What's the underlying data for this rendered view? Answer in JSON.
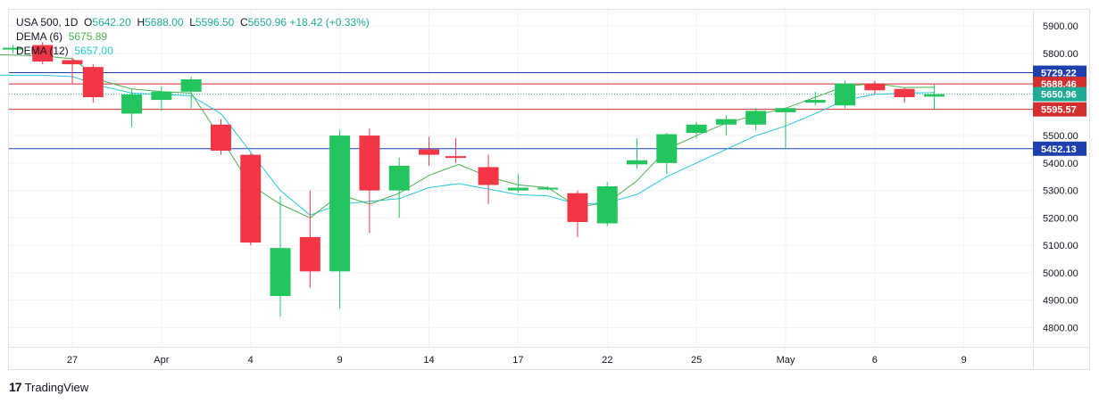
{
  "legend": {
    "symbol": "USA 500, 1D",
    "open_label": "O",
    "open": "5642.20",
    "high_label": "H",
    "high": "5688.00",
    "low_label": "L",
    "low": "5596.50",
    "close_label": "C",
    "close": "5650.96",
    "change": "+18.42 (+0.33%)",
    "dema6_label": "DEMA (6)",
    "dema6_value": "5675.89",
    "dema12_label": "DEMA (12)",
    "dema12_value": "5657.00"
  },
  "brand": {
    "logo": "17",
    "name": "TradingView"
  },
  "colors": {
    "up": "#22c55e",
    "down": "#f23645",
    "dema6": "#4caf50",
    "dema12": "#26c6da",
    "blue_line": "#1e40af",
    "red_line": "#d32f2f",
    "grid": "#f0f3fa"
  },
  "chart_data": {
    "type": "candlestick",
    "ylim": [
      4760,
      5950
    ],
    "y_ticks": [
      4800,
      4900,
      5000,
      5100,
      5200,
      5300,
      5400,
      5500,
      5600,
      5700,
      5800,
      5900
    ],
    "y_tick_labels": [
      "4800.00",
      "4900.00",
      "5000.00",
      "5100.00",
      "5200.00",
      "5300.00",
      "5400.00",
      "5500.00",
      "5600.00",
      "5700.00",
      "5800.00",
      "5900.00"
    ],
    "x_tick_labels": [
      {
        "label": "27",
        "day": 0
      },
      {
        "label": "Apr",
        "day": 3
      },
      {
        "label": "4",
        "day": 6
      },
      {
        "label": "9",
        "day": 9
      },
      {
        "label": "14",
        "day": 12
      },
      {
        "label": "17",
        "day": 15
      },
      {
        "label": "22",
        "day": 18
      },
      {
        "label": "25",
        "day": 21
      },
      {
        "label": "May",
        "day": 24
      },
      {
        "label": "6",
        "day": 27
      },
      {
        "label": "9",
        "day": 30
      }
    ],
    "candles": [
      {
        "day": -2,
        "open": 5820,
        "high": 5830,
        "low": 5800,
        "close": 5820
      },
      {
        "day": -1,
        "open": 5830,
        "high": 5840,
        "low": 5760,
        "close": 5770
      },
      {
        "day": 0,
        "open": 5775,
        "high": 5785,
        "low": 5690,
        "close": 5760
      },
      {
        "day": 0.7,
        "open": 5750,
        "high": 5760,
        "low": 5620,
        "close": 5640
      },
      {
        "day": 2,
        "open": 5580,
        "high": 5670,
        "low": 5530,
        "close": 5650
      },
      {
        "day": 3,
        "open": 5630,
        "high": 5680,
        "low": 5590,
        "close": 5660
      },
      {
        "day": 4,
        "open": 5660,
        "high": 5715,
        "low": 5600,
        "close": 5705
      },
      {
        "day": 5,
        "open": 5540,
        "high": 5560,
        "low": 5430,
        "close": 5445
      },
      {
        "day": 6,
        "open": 5430,
        "high": 5435,
        "low": 5100,
        "close": 5110
      },
      {
        "day": 7,
        "open": 4915,
        "high": 5280,
        "low": 4840,
        "close": 5090
      },
      {
        "day": 8,
        "open": 5130,
        "high": 5300,
        "low": 4945,
        "close": 5005
      },
      {
        "day": 9,
        "open": 5005,
        "high": 5520,
        "low": 4870,
        "close": 5500
      },
      {
        "day": 10,
        "open": 5500,
        "high": 5525,
        "low": 5145,
        "close": 5300
      },
      {
        "day": 11,
        "open": 5300,
        "high": 5420,
        "low": 5200,
        "close": 5390
      },
      {
        "day": 12,
        "open": 5450,
        "high": 5495,
        "low": 5390,
        "close": 5430
      },
      {
        "day": 12.9,
        "open": 5425,
        "high": 5490,
        "low": 5400,
        "close": 5420
      },
      {
        "day": 14,
        "open": 5385,
        "high": 5430,
        "low": 5250,
        "close": 5320
      },
      {
        "day": 15,
        "open": 5300,
        "high": 5360,
        "low": 5290,
        "close": 5310
      },
      {
        "day": 16,
        "open": 5310,
        "high": 5315,
        "low": 5300,
        "close": 5310
      },
      {
        "day": 17,
        "open": 5290,
        "high": 5300,
        "low": 5130,
        "close": 5185
      },
      {
        "day": 18,
        "open": 5180,
        "high": 5330,
        "low": 5170,
        "close": 5315
      },
      {
        "day": 19,
        "open": 5395,
        "high": 5490,
        "low": 5380,
        "close": 5410
      },
      {
        "day": 20,
        "open": 5400,
        "high": 5510,
        "low": 5360,
        "close": 5505
      },
      {
        "day": 21,
        "open": 5510,
        "high": 5550,
        "low": 5490,
        "close": 5540
      },
      {
        "day": 22,
        "open": 5540,
        "high": 5575,
        "low": 5500,
        "close": 5560
      },
      {
        "day": 23,
        "open": 5540,
        "high": 5600,
        "low": 5520,
        "close": 5590
      },
      {
        "day": 24,
        "open": 5585,
        "high": 5600,
        "low": 5450,
        "close": 5600
      },
      {
        "day": 25,
        "open": 5620,
        "high": 5660,
        "low": 5610,
        "close": 5630
      },
      {
        "day": 26,
        "open": 5610,
        "high": 5700,
        "low": 5600,
        "close": 5690
      },
      {
        "day": 27,
        "open": 5690,
        "high": 5700,
        "low": 5650,
        "close": 5665
      },
      {
        "day": 28,
        "open": 5670,
        "high": 5675,
        "low": 5620,
        "close": 5640
      },
      {
        "day": 29,
        "open": 5642,
        "high": 5688,
        "low": 5596,
        "close": 5651
      }
    ],
    "dema6": [
      [
        -2.5,
        5795
      ],
      [
        -1,
        5790
      ],
      [
        0,
        5780
      ],
      [
        1,
        5700
      ],
      [
        2,
        5670
      ],
      [
        3,
        5660
      ],
      [
        4,
        5655
      ],
      [
        5,
        5490
      ],
      [
        6,
        5320
      ],
      [
        7,
        5250
      ],
      [
        8,
        5200
      ],
      [
        9,
        5285
      ],
      [
        10,
        5250
      ],
      [
        11,
        5290
      ],
      [
        12,
        5355
      ],
      [
        13,
        5395
      ],
      [
        14,
        5350
      ],
      [
        15,
        5320
      ],
      [
        16,
        5310
      ],
      [
        17,
        5240
      ],
      [
        18,
        5255
      ],
      [
        19,
        5335
      ],
      [
        20,
        5450
      ],
      [
        21,
        5500
      ],
      [
        22,
        5545
      ],
      [
        23,
        5575
      ],
      [
        24,
        5600
      ],
      [
        25,
        5640
      ],
      [
        26,
        5680
      ],
      [
        27,
        5690
      ],
      [
        28,
        5675
      ],
      [
        29,
        5676
      ]
    ],
    "dema12": [
      [
        -2.5,
        5720
      ],
      [
        -1,
        5720
      ],
      [
        0,
        5715
      ],
      [
        1,
        5680
      ],
      [
        2,
        5655
      ],
      [
        3,
        5650
      ],
      [
        4,
        5645
      ],
      [
        5,
        5580
      ],
      [
        6,
        5440
      ],
      [
        7,
        5300
      ],
      [
        8,
        5210
      ],
      [
        9,
        5250
      ],
      [
        10,
        5260
      ],
      [
        11,
        5270
      ],
      [
        12,
        5310
      ],
      [
        13,
        5325
      ],
      [
        14,
        5305
      ],
      [
        15,
        5285
      ],
      [
        16,
        5280
      ],
      [
        17,
        5250
      ],
      [
        18,
        5255
      ],
      [
        19,
        5285
      ],
      [
        20,
        5350
      ],
      [
        21,
        5400
      ],
      [
        22,
        5450
      ],
      [
        23,
        5500
      ],
      [
        24,
        5535
      ],
      [
        25,
        5580
      ],
      [
        26,
        5630
      ],
      [
        27,
        5650
      ],
      [
        28,
        5655
      ],
      [
        29,
        5657
      ]
    ],
    "price_lines": [
      {
        "value": 5729.22,
        "label": "5729.22",
        "color": "#1e40af",
        "style": "solid"
      },
      {
        "value": 5688.46,
        "label": "5688.46",
        "color": "#d32f2f",
        "style": "solid"
      },
      {
        "value": 5650.96,
        "label": "5650.96",
        "color": "#22ab94",
        "style": "dotted"
      },
      {
        "value": 5595.57,
        "label": "5595.57",
        "color": "#d32f2f",
        "style": "solid"
      },
      {
        "value": 5452.13,
        "label": "5452.13",
        "color": "#1e40af",
        "style": "solid"
      }
    ]
  }
}
